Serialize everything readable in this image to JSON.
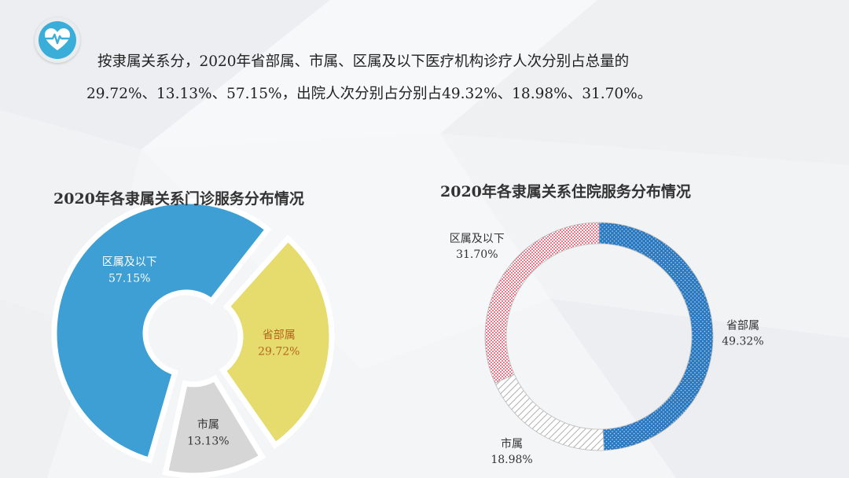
{
  "header": {
    "icon": "heart-pulse-icon",
    "accent_color": "#3aaed8",
    "line1": "按隶属关系分，2020年省部属、市属、区属及以下医疗机构诊疗人次分别占总量的",
    "line2": "29.72%、13.13%、57.15%，出院人次分别占分别占49.32%、18.98%、31.70%。"
  },
  "chart_data": [
    {
      "type": "pie",
      "variant": "exploded donut",
      "title": "2020年各隶属关系门诊服务分布情况",
      "series": [
        {
          "name": "区属及以下",
          "value": 57.15,
          "label": "57.15%",
          "color": "#3d9fd3"
        },
        {
          "name": "省部属",
          "value": 29.72,
          "label": "29.72%",
          "color": "#e6dc6e"
        },
        {
          "name": "市属",
          "value": 13.13,
          "label": "13.13%",
          "color": "#d6d6d6"
        }
      ]
    },
    {
      "type": "pie",
      "variant": "donut",
      "title": "2020年各隶属关系住院服务分布情况",
      "series": [
        {
          "name": "省部属",
          "value": 49.32,
          "label": "49.32%",
          "color": "#2a78c0",
          "pattern": "dotted"
        },
        {
          "name": "市属",
          "value": 18.98,
          "label": "18.98%",
          "color": "#9a9a9a",
          "pattern": "diagonal hatch"
        },
        {
          "name": "区属及以下",
          "value": 31.7,
          "label": "31.70%",
          "color": "#e47a8a",
          "pattern": "checkered"
        }
      ]
    }
  ]
}
